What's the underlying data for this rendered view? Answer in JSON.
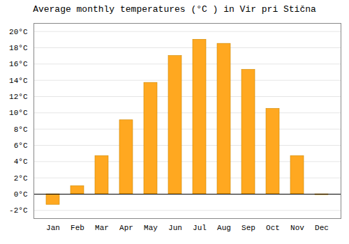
{
  "chart_data": {
    "type": "bar",
    "title": "Average monthly temperatures (°C ) in Vir pri Stična",
    "categories": [
      "Jan",
      "Feb",
      "Mar",
      "Apr",
      "May",
      "Jun",
      "Jul",
      "Aug",
      "Sep",
      "Oct",
      "Nov",
      "Dec"
    ],
    "values": [
      -1.3,
      1.0,
      4.7,
      9.1,
      13.7,
      17.0,
      19.0,
      18.5,
      15.3,
      10.5,
      4.7,
      -0.1
    ],
    "color": "#FFA820",
    "ylim": [
      -3,
      21
    ],
    "yticks": [
      {
        "value": -2,
        "label": "-2°C"
      },
      {
        "value": 0,
        "label": "0°C"
      },
      {
        "value": 2,
        "label": "2°C"
      },
      {
        "value": 4,
        "label": "4°C"
      },
      {
        "value": 6,
        "label": "6°C"
      },
      {
        "value": 8,
        "label": "8°C"
      },
      {
        "value": 10,
        "label": "10°C"
      },
      {
        "value": 12,
        "label": "12°C"
      },
      {
        "value": 14,
        "label": "14°C"
      },
      {
        "value": 16,
        "label": "16°C"
      },
      {
        "value": 18,
        "label": "18°C"
      },
      {
        "value": 20,
        "label": "20°C"
      }
    ],
    "grid": true
  }
}
